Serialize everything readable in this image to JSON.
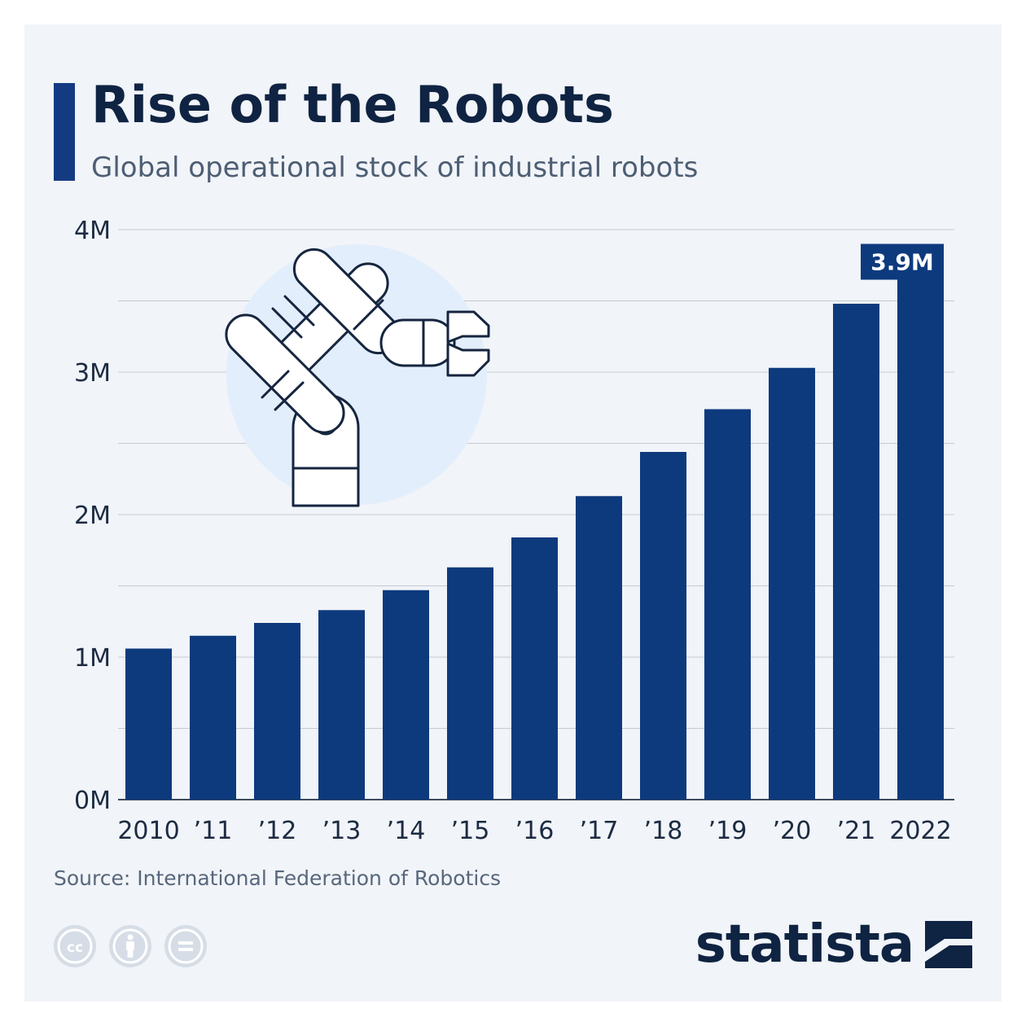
{
  "header": {
    "title": "Rise of the Robots",
    "subtitle": "Global operational stock of industrial robots"
  },
  "footer": {
    "source": "Source: International Federation of Robotics",
    "brand": "statista",
    "license_icons": [
      "cc-icon",
      "attribution-icon",
      "no-derivatives-icon"
    ]
  },
  "colors": {
    "accent": "#143a82",
    "bar": "#0d3a7d",
    "title": "#0f2342",
    "background": "#f1f4f8",
    "gridline": "#c4cbd4",
    "illustration_circle": "#e3eefc"
  },
  "illustration": {
    "icon": "robot-arm-icon"
  },
  "chart_data": {
    "type": "bar",
    "categories": [
      "2010",
      "’11",
      "’12",
      "’13",
      "’14",
      "’15",
      "’16",
      "’17",
      "’18",
      "’19",
      "’20",
      "’21",
      "2022"
    ],
    "values": [
      1.06,
      1.15,
      1.24,
      1.33,
      1.47,
      1.63,
      1.84,
      2.13,
      2.44,
      2.74,
      3.03,
      3.48,
      3.9
    ],
    "unit": "million robots",
    "ylim": [
      0,
      4
    ],
    "yticks": [
      0,
      1,
      2,
      3,
      4
    ],
    "ytick_labels": [
      "0M",
      "1M",
      "2M",
      "3M",
      "4M"
    ],
    "minor_gridlines": [
      0.5,
      1.5,
      2.5,
      3.5
    ],
    "grid": true,
    "annotations": [
      {
        "category": "2022",
        "label": "3.9M"
      }
    ],
    "title": "",
    "xlabel": "",
    "ylabel": ""
  }
}
